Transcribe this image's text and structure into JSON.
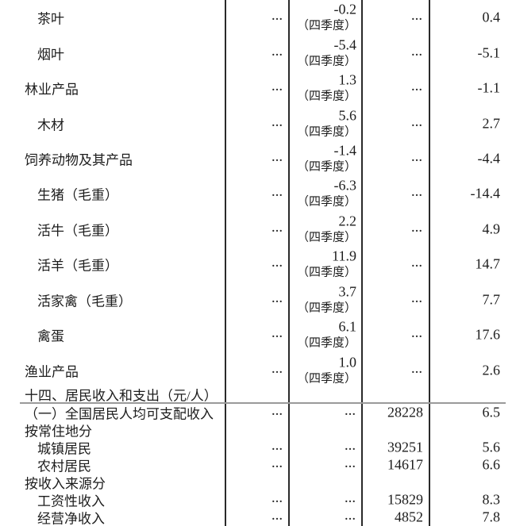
{
  "page": {
    "background": "#ffffff",
    "text_color": "#1d1d1d",
    "border_color": "#2a2a2a",
    "divider_color": "#9a9a9a"
  },
  "table": {
    "na_symbol": "…",
    "quarter_note_text": "（四季度）",
    "quarterly_rows": [
      {
        "label": "茶叶",
        "indent": 2,
        "col1": "…",
        "quarter_value": "-0.2",
        "quarter_note": "（四季度）",
        "col3": "…",
        "annual_value": "0.4"
      },
      {
        "label": "烟叶",
        "indent": 2,
        "col1": "…",
        "quarter_value": "-5.4",
        "quarter_note": "（四季度）",
        "col3": "…",
        "annual_value": "-5.1"
      },
      {
        "label": "林业产品",
        "indent": 1,
        "col1": "…",
        "quarter_value": "1.3",
        "quarter_note": "（四季度）",
        "col3": "…",
        "annual_value": "-1.1"
      },
      {
        "label": "木材",
        "indent": 2,
        "col1": "…",
        "quarter_value": "5.6",
        "quarter_note": "（四季度）",
        "col3": "…",
        "annual_value": "2.7"
      },
      {
        "label": "饲养动物及其产品",
        "indent": 1,
        "col1": "…",
        "quarter_value": "-1.4",
        "quarter_note": "（四季度）",
        "col3": "…",
        "annual_value": "-4.4"
      },
      {
        "label": "生猪（毛重）",
        "indent": 2,
        "col1": "…",
        "quarter_value": "-6.3",
        "quarter_note": "（四季度）",
        "col3": "…",
        "annual_value": "-14.4"
      },
      {
        "label": "活牛（毛重）",
        "indent": 2,
        "col1": "…",
        "quarter_value": "2.2",
        "quarter_note": "（四季度）",
        "col3": "…",
        "annual_value": "4.9"
      },
      {
        "label": "活羊（毛重）",
        "indent": 2,
        "col1": "…",
        "quarter_value": "11.9",
        "quarter_note": "（四季度）",
        "col3": "…",
        "annual_value": "14.7"
      },
      {
        "label": "活家禽（毛重）",
        "indent": 2,
        "col1": "…",
        "quarter_value": "3.7",
        "quarter_note": "（四季度）",
        "col3": "…",
        "annual_value": "7.7"
      },
      {
        "label": "禽蛋",
        "indent": 2,
        "col1": "…",
        "quarter_value": "6.1",
        "quarter_note": "（四季度）",
        "col3": "…",
        "annual_value": "17.6"
      },
      {
        "label": "渔业产品",
        "indent": 1,
        "col1": "…",
        "quarter_value": "1.0",
        "quarter_note": "（四季度）",
        "col3": "…",
        "annual_value": "2.6"
      }
    ],
    "section_header": "十四、居民收入和支出（元/人）",
    "income_rows": [
      {
        "label": "（一）全国居民人均可支配收入",
        "indent": 1,
        "col1": "…",
        "col2": "…",
        "value": "28228",
        "growth": "6.5"
      },
      {
        "label": "按常住地分",
        "indent": 1,
        "col1": "",
        "col2": "",
        "value": "",
        "growth": ""
      },
      {
        "label": "城镇居民",
        "indent": 2,
        "col1": "…",
        "col2": "…",
        "value": "39251",
        "growth": "5.6"
      },
      {
        "label": "农村居民",
        "indent": 2,
        "col1": "…",
        "col2": "…",
        "value": "14617",
        "growth": "6.6"
      },
      {
        "label": "按收入来源分",
        "indent": 1,
        "col1": "",
        "col2": "",
        "value": "",
        "growth": ""
      },
      {
        "label": "工资性收入",
        "indent": 2,
        "col1": "…",
        "col2": "…",
        "value": "15829",
        "growth": "8.3"
      },
      {
        "label": "经营净收入",
        "indent": 2,
        "col1": "…",
        "col2": "…",
        "value": "4852",
        "growth": "7.8"
      }
    ]
  }
}
